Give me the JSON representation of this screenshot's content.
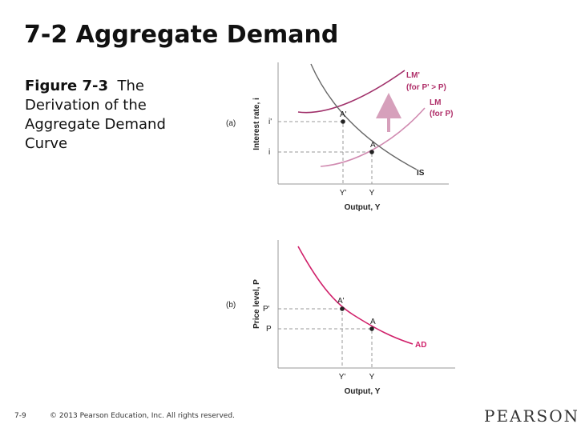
{
  "slide": {
    "title": "7-2 Aggregate Demand",
    "caption": {
      "figure": "Figure 7-3",
      "text": "The Derivation of the Aggregate Demand Curve"
    },
    "panel_a": {
      "tag": "(a)",
      "y_axis": "Interest rate, i",
      "x_axis": "Output, Y",
      "lm_prime": "LM'",
      "lm_prime_note": "(for P' > P)",
      "lm": "LM",
      "lm_note": "(for P)",
      "is": "IS",
      "point_a_prime": "A'",
      "point_a": "A",
      "i_prime": "i'",
      "i": "i",
      "y_prime": "Y'",
      "y": "Y"
    },
    "panel_b": {
      "tag": "(b)",
      "y_axis": "Price level, P",
      "x_axis": "Output, Y",
      "ad": "AD",
      "point_a_prime": "A'",
      "point_a": "A",
      "p_prime": "P'",
      "p": "P",
      "y_prime": "Y'",
      "y": "Y"
    },
    "footer": {
      "page": "7-9",
      "copyright": "© 2013 Pearson Education, Inc. All rights reserved.",
      "brand": "PEARSON"
    }
  }
}
